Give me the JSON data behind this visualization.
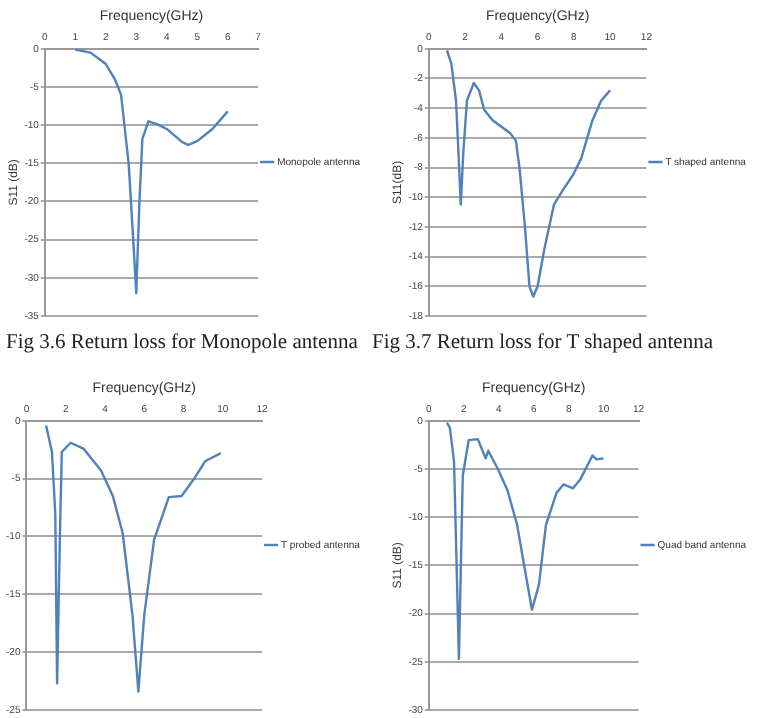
{
  "chart_data": [
    {
      "type": "line",
      "xlabel": "Frequency(GHz)",
      "ylabel": "S11 (dB)",
      "annotations": [
        "Fig 3.6 Return loss for Monopole antenna"
      ],
      "xlim": [
        0,
        7
      ],
      "xticks": [
        0,
        1,
        2,
        3,
        4,
        5,
        6,
        7
      ],
      "ylim": [
        -35,
        0
      ],
      "yticks": [
        0,
        -5,
        -10,
        -15,
        -20,
        -25,
        -30,
        -35
      ],
      "grid": "y",
      "legend": "right",
      "marker": "none",
      "line_style": "solid",
      "series": [
        {
          "name": "Monopole antenna",
          "color": "#4f81bd",
          "x": [
            1,
            1.5,
            2,
            2.3,
            2.5,
            2.75,
            2.9,
            3,
            3.1,
            3.2,
            3.4,
            3.7,
            4,
            4.5,
            4.7,
            5,
            5.5,
            6
          ],
          "values": [
            -0.1,
            -0.5,
            -2,
            -4,
            -6,
            -15,
            -25,
            -32,
            -20.4,
            -11.8,
            -9.5,
            -9.9,
            -10.5,
            -12.2,
            -12.6,
            -12.1,
            -10.5,
            -8.2
          ]
        }
      ]
    },
    {
      "type": "line",
      "xlabel": "Frequency(GHz)",
      "ylabel": "S11(dB)",
      "annotations": [
        "Fig 3.7 Return loss for T shaped antenna"
      ],
      "xlim": [
        0,
        12
      ],
      "xticks": [
        0,
        2,
        4,
        6,
        8,
        10,
        12
      ],
      "ylim": [
        -18,
        0
      ],
      "yticks": [
        0,
        -2,
        -4,
        -6,
        -8,
        -10,
        -12,
        -14,
        -16,
        -18
      ],
      "grid": "y",
      "legend": "right",
      "marker": "none",
      "line_style": "solid",
      "series": [
        {
          "name": "T shaped antenna",
          "color": "#4f81bd",
          "x": [
            1,
            1.24,
            1.5,
            1.67,
            1.76,
            1.9,
            2.1,
            2.48,
            2.77,
            3.05,
            3.5,
            4.5,
            4.8,
            5,
            5.3,
            5.55,
            5.76,
            6,
            6.37,
            6.9,
            7.4,
            7.95,
            8.4,
            9,
            9.5,
            10
          ],
          "values": [
            -0.1,
            -1,
            -3.5,
            -8,
            -10.5,
            -7,
            -3.5,
            -2.3,
            -2.8,
            -4.1,
            -4.8,
            -5.7,
            -6.2,
            -8,
            -12,
            -16,
            -16.7,
            -16,
            -13.5,
            -10.5,
            -9.5,
            -8.5,
            -7.4,
            -4.9,
            -3.5,
            -2.8
          ]
        }
      ]
    },
    {
      "type": "line",
      "xlabel": "Frequency(GHz)",
      "xlim": [
        0,
        12
      ],
      "xticks": [
        0,
        2,
        4,
        6,
        8,
        10,
        12
      ],
      "ylim": [
        -25,
        0
      ],
      "yticks": [
        0,
        -5,
        -10,
        -15,
        -20,
        -25
      ],
      "grid": "y",
      "legend": "right",
      "marker": "none",
      "line_style": "solid",
      "series": [
        {
          "name": "T probed antenna",
          "color": "#4f81bd",
          "x": [
            1,
            1.3,
            1.47,
            1.56,
            1.7,
            1.8,
            2.25,
            2.9,
            3.8,
            4.4,
            4.9,
            5.4,
            5.7,
            6,
            6.5,
            7.25,
            7.9,
            8.5,
            9.1,
            9.9
          ],
          "values": [
            -0.4,
            -2.7,
            -8.1,
            -22.7,
            -10.3,
            -2.7,
            -1.9,
            -2.4,
            -4.3,
            -6.5,
            -9.7,
            -16.8,
            -23.4,
            -16.8,
            -10.3,
            -6.6,
            -6.5,
            -5.1,
            -3.5,
            -2.8
          ]
        }
      ]
    },
    {
      "type": "line",
      "xlabel": "Frequency(GHz)",
      "ylabel": "S11 (dB)",
      "xlim": [
        0,
        12
      ],
      "xticks": [
        0,
        2,
        4,
        6,
        8,
        10,
        12
      ],
      "ylim": [
        -30,
        0
      ],
      "yticks": [
        0,
        -5,
        -10,
        -15,
        -20,
        -25,
        -30
      ],
      "grid": "y",
      "legend": "right",
      "marker": "none",
      "line_style": "solid",
      "series": [
        {
          "name": "Quad band antenna",
          "color": "#4f81bd",
          "x": [
            1.03,
            1.2,
            1.44,
            1.72,
            1.94,
            2.28,
            2.8,
            3.25,
            3.4,
            3.95,
            4.5,
            5.05,
            5.47,
            5.9,
            6.3,
            6.7,
            7.3,
            7.7,
            8.25,
            8.66,
            9.36,
            9.6,
            10
          ],
          "values": [
            -0.2,
            -0.7,
            -4.2,
            -24.7,
            -5.7,
            -2,
            -1.9,
            -3.9,
            -3.1,
            -5,
            -7.2,
            -10.8,
            -15.2,
            -19.6,
            -17,
            -10.8,
            -7.5,
            -6.6,
            -7,
            -6.1,
            -3.6,
            -4,
            -3.9
          ]
        }
      ]
    }
  ]
}
